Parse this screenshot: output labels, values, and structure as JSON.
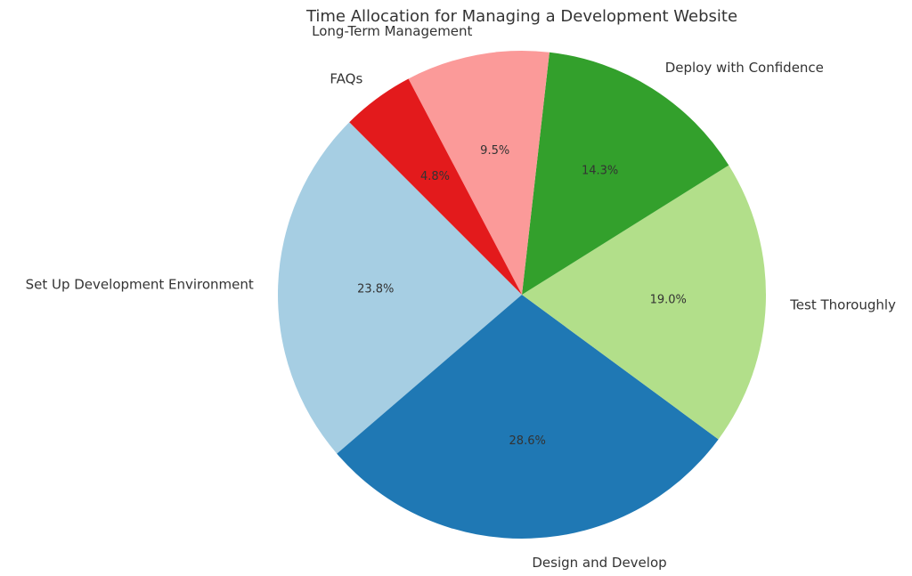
{
  "chart_data": {
    "type": "pie",
    "title": "Time Allocation for Managing a Development Website",
    "start_angle_deg": 135,
    "direction": "counterclockwise",
    "categories": [
      "Set Up Development Environment",
      "Design and Develop",
      "Test Thoroughly",
      "Deploy with Confidence",
      "Long-Term Management",
      "FAQs"
    ],
    "values": [
      23.8,
      28.6,
      19.0,
      14.3,
      9.5,
      4.8
    ],
    "percent_labels": [
      "23.8%",
      "28.6%",
      "19.0%",
      "14.3%",
      "9.5%",
      "4.8%"
    ],
    "colors": [
      "#a6cee3",
      "#1f78b4",
      "#b2df8a",
      "#33a02c",
      "#fb9a99",
      "#e31a1c"
    ]
  }
}
